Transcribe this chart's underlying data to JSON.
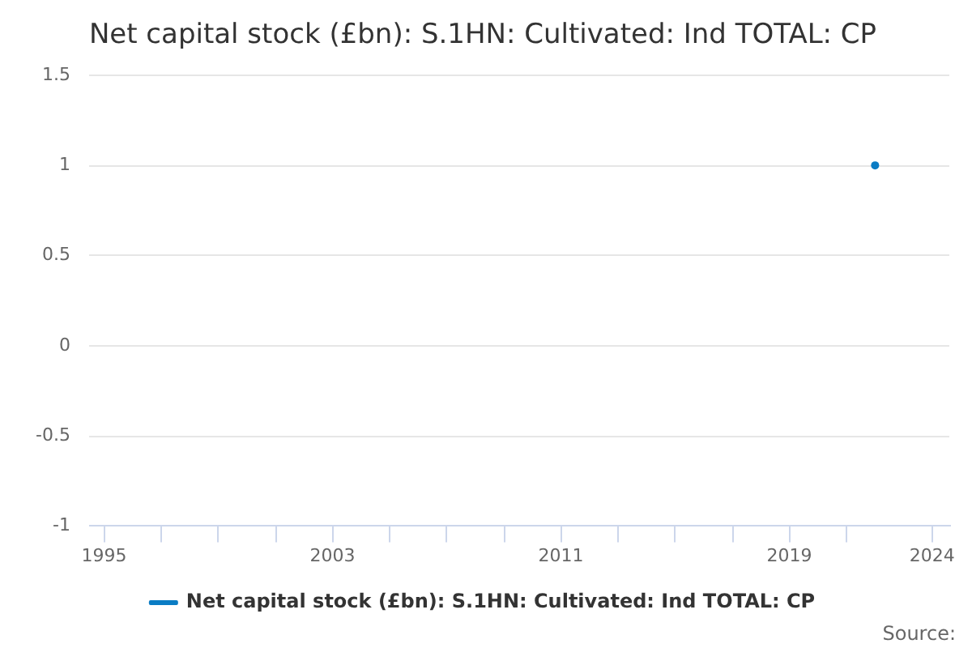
{
  "chart_data": {
    "type": "line",
    "title": "Net capital stock (£bn): S.1HN: Cultivated: Ind TOTAL: CP",
    "x": [
      2022
    ],
    "series": [
      {
        "name": "Net capital stock (£bn): S.1HN: Cultivated: Ind TOTAL: CP",
        "color": "#0a7cc4",
        "values": [
          1
        ]
      }
    ],
    "xlim": [
      1994.5,
      2024.6
    ],
    "xticks": [
      1995,
      {
        "value": 1997,
        "label": null
      },
      {
        "value": 1999,
        "label": null
      },
      {
        "value": 2001,
        "label": null
      },
      2003,
      {
        "value": 2005,
        "label": null
      },
      {
        "value": 2007,
        "label": null
      },
      {
        "value": 2009,
        "label": null
      },
      2011,
      {
        "value": 2013,
        "label": null
      },
      {
        "value": 2015,
        "label": null
      },
      {
        "value": 2017,
        "label": null
      },
      2019,
      {
        "value": 2021,
        "label": null
      },
      2024
    ],
    "ylim": [
      -1,
      1.5
    ],
    "yticks": [
      -1,
      -0.5,
      0,
      0.5,
      1,
      1.5
    ],
    "grid": "y",
    "legend": "bottom",
    "marker": "circle",
    "annotations": [
      "Source:"
    ]
  }
}
